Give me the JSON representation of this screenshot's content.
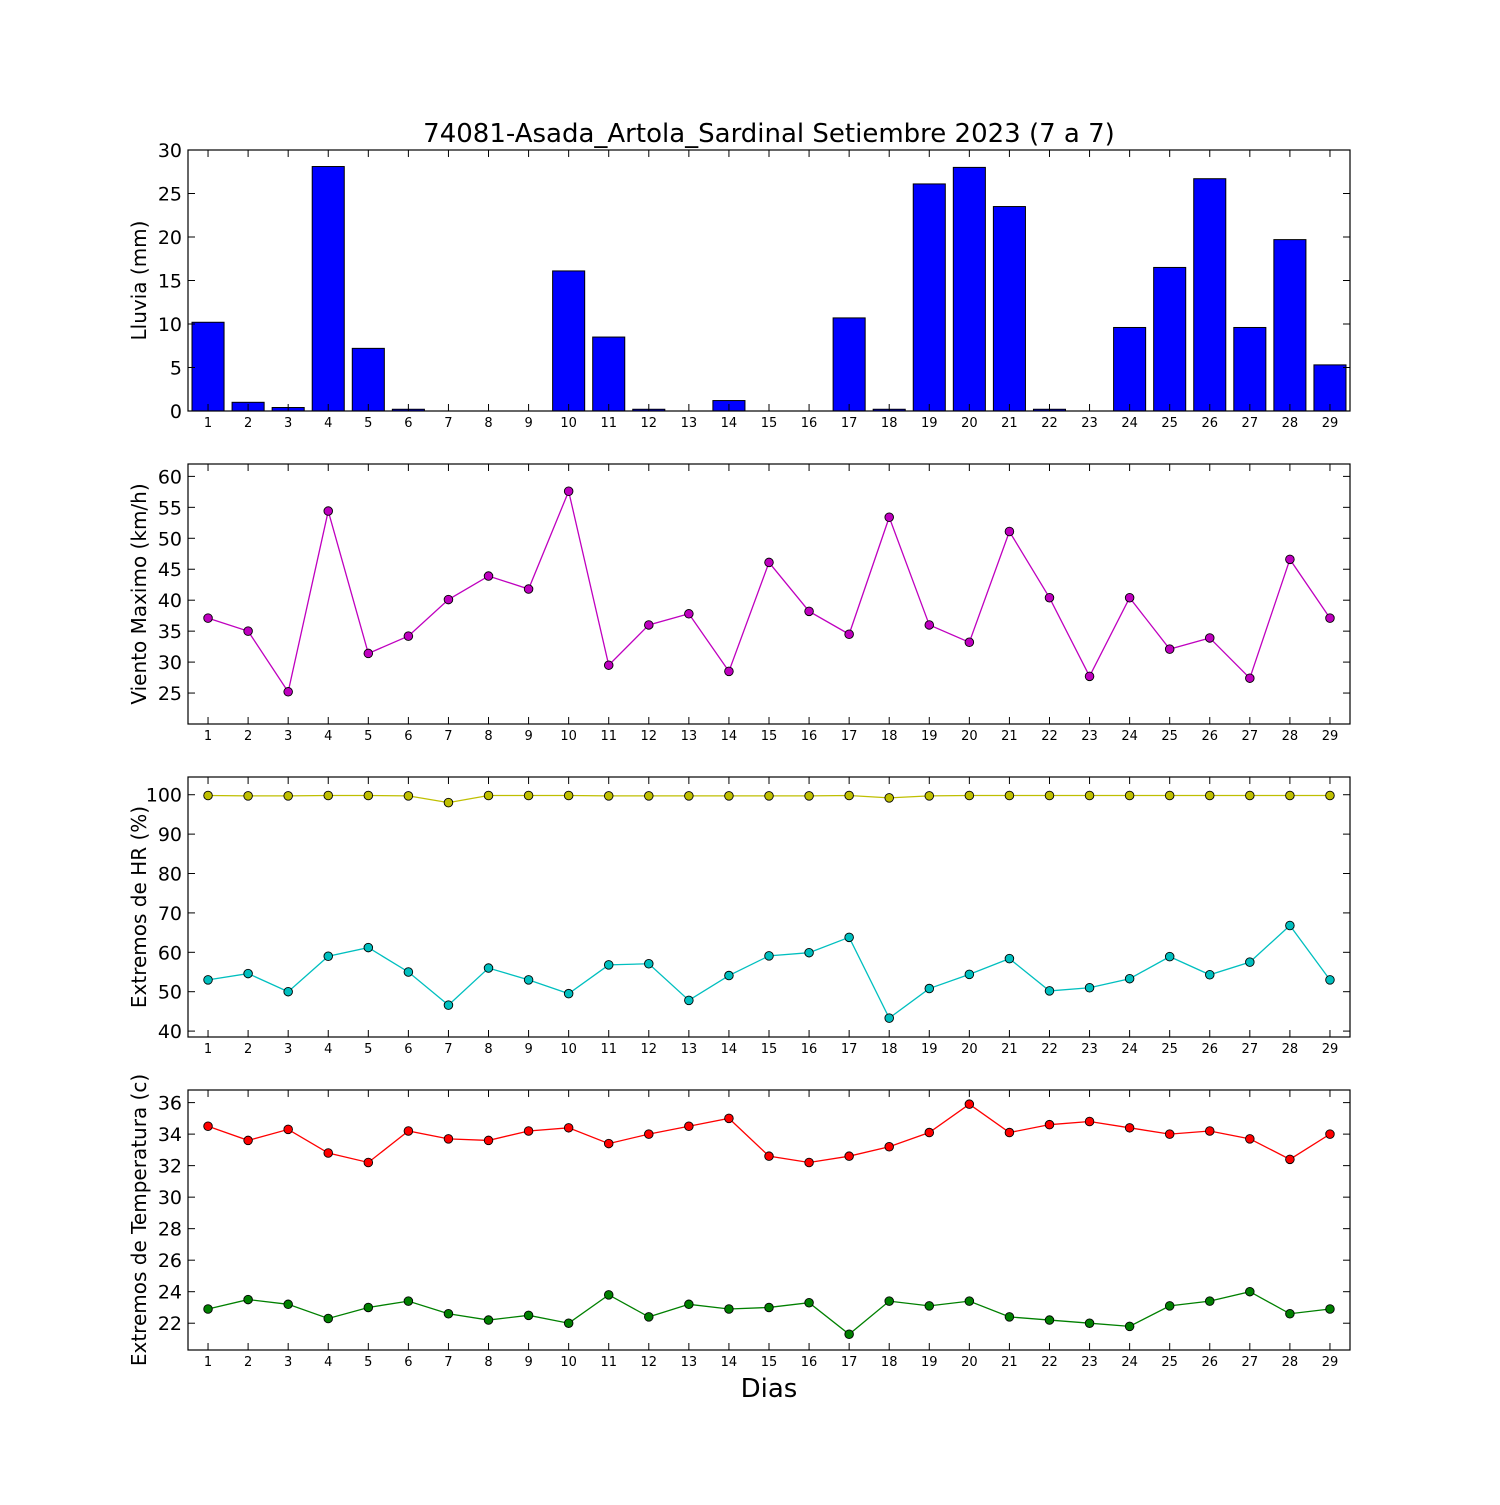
{
  "figure_title": "74081-Asada_Artola_Sardinal Setiembre 2023  (7 a 7)",
  "x_axis_label": "Dias",
  "chart_data": [
    {
      "type": "bar",
      "ylabel": "Lluvia (mm)",
      "ylim": [
        0,
        30
      ],
      "yticks": [
        0,
        5,
        10,
        15,
        20,
        25,
        30
      ],
      "xlim": [
        0.5,
        29.5
      ],
      "x": [
        1,
        2,
        3,
        4,
        5,
        6,
        7,
        8,
        9,
        10,
        11,
        12,
        13,
        14,
        15,
        16,
        17,
        18,
        19,
        20,
        21,
        22,
        23,
        24,
        25,
        26,
        27,
        28,
        29
      ],
      "series": [
        {
          "color": "#0000ff",
          "values": [
            10.2,
            1.0,
            0.4,
            28.1,
            7.2,
            0.2,
            0,
            0,
            0,
            16.1,
            8.5,
            0.2,
            0,
            1.2,
            0,
            0,
            10.7,
            0.2,
            26.1,
            28.0,
            23.5,
            0.2,
            0,
            9.6,
            16.5,
            26.7,
            9.6,
            19.7,
            5.3
          ]
        }
      ]
    },
    {
      "type": "line",
      "ylabel": "Viento Maximo (km/h)",
      "ylim": [
        20,
        62
      ],
      "yticks": [
        25,
        30,
        35,
        40,
        45,
        50,
        55,
        60
      ],
      "xlim": [
        0.5,
        29.5
      ],
      "x": [
        1,
        2,
        3,
        4,
        5,
        6,
        7,
        8,
        9,
        10,
        11,
        12,
        13,
        14,
        15,
        16,
        17,
        18,
        19,
        20,
        21,
        22,
        23,
        24,
        25,
        26,
        27,
        28,
        29
      ],
      "series": [
        {
          "color": "#bf00bf",
          "values": [
            37.1,
            35.0,
            25.2,
            54.4,
            31.4,
            34.2,
            40.1,
            43.9,
            41.8,
            57.6,
            29.5,
            36.0,
            37.8,
            28.5,
            46.1,
            38.2,
            34.5,
            53.4,
            36.0,
            33.2,
            51.1,
            40.4,
            27.7,
            40.4,
            32.1,
            33.9,
            27.4,
            46.6,
            37.1
          ]
        }
      ]
    },
    {
      "type": "line",
      "ylabel": "Extremos de HR (%)",
      "ylim": [
        38.5,
        104.5
      ],
      "yticks": [
        40,
        50,
        60,
        70,
        80,
        90,
        100
      ],
      "xlim": [
        0.5,
        29.5
      ],
      "x": [
        1,
        2,
        3,
        4,
        5,
        6,
        7,
        8,
        9,
        10,
        11,
        12,
        13,
        14,
        15,
        16,
        17,
        18,
        19,
        20,
        21,
        22,
        23,
        24,
        25,
        26,
        27,
        28,
        29
      ],
      "series": [
        {
          "color": "#bfbf00",
          "values": [
            99.8,
            99.7,
            99.7,
            99.8,
            99.8,
            99.7,
            98.0,
            99.8,
            99.8,
            99.8,
            99.7,
            99.7,
            99.7,
            99.7,
            99.7,
            99.7,
            99.8,
            99.2,
            99.7,
            99.8,
            99.8,
            99.8,
            99.8,
            99.8,
            99.8,
            99.8,
            99.8,
            99.8,
            99.8
          ]
        },
        {
          "color": "#00bfbf",
          "values": [
            53.0,
            54.6,
            50.0,
            59.0,
            61.2,
            55.0,
            46.6,
            56.0,
            53.0,
            49.5,
            56.8,
            57.1,
            47.8,
            54.1,
            59.1,
            59.9,
            63.8,
            43.3,
            50.8,
            54.4,
            58.4,
            50.2,
            51.0,
            53.3,
            58.9,
            54.3,
            57.5,
            66.8,
            53.0
          ]
        }
      ]
    },
    {
      "type": "line",
      "ylabel": "Extremos de Temperatura (c)",
      "ylim": [
        20.3,
        36.8
      ],
      "yticks": [
        22,
        24,
        26,
        28,
        30,
        32,
        34,
        36
      ],
      "xlim": [
        0.5,
        29.5
      ],
      "x": [
        1,
        2,
        3,
        4,
        5,
        6,
        7,
        8,
        9,
        10,
        11,
        12,
        13,
        14,
        15,
        16,
        17,
        18,
        19,
        20,
        21,
        22,
        23,
        24,
        25,
        26,
        27,
        28,
        29
      ],
      "series": [
        {
          "color": "#ff0000",
          "values": [
            34.5,
            33.6,
            34.3,
            32.8,
            32.2,
            34.2,
            33.7,
            33.6,
            34.2,
            34.4,
            33.4,
            34.0,
            34.5,
            35.0,
            32.6,
            32.2,
            32.6,
            33.2,
            34.1,
            35.9,
            34.1,
            34.6,
            34.8,
            34.4,
            34.0,
            34.2,
            33.7,
            32.4,
            34.0
          ]
        },
        {
          "color": "#008000",
          "values": [
            22.9,
            23.5,
            23.2,
            22.3,
            23.0,
            23.4,
            22.6,
            22.2,
            22.5,
            22.0,
            23.8,
            22.4,
            23.2,
            22.9,
            23.0,
            23.3,
            21.3,
            23.4,
            23.1,
            23.4,
            22.4,
            22.2,
            22.0,
            21.8,
            23.1,
            23.4,
            24.0,
            22.6,
            22.9
          ]
        }
      ]
    }
  ]
}
